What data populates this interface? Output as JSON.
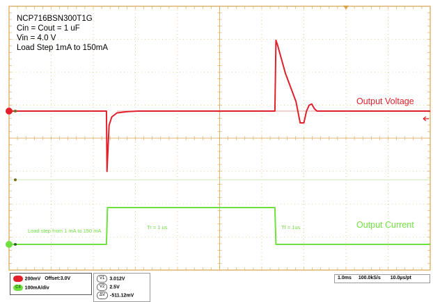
{
  "scope": {
    "info_lines": [
      "NCP716BSN300T1G",
      "Cin = Cout = 1 uF",
      "Vin = 4.0 V",
      "Load Step 1mA to 150mA"
    ],
    "colors": {
      "background": "#ffffff",
      "frame": "#d9a34a",
      "grid": "#d9a34a",
      "voltage": "#e0202a",
      "current": "#6fe040",
      "text": "#000000"
    }
  },
  "chart_data": {
    "type": "line",
    "title": "",
    "xlabel": "",
    "ylabel": "",
    "grid": true,
    "x_unit": "ms",
    "xlim": [
      -1.85,
      6.15
    ],
    "series": [
      {
        "name": "Output Voltage",
        "color": "#e0202a",
        "points": [
          [
            -1.85,
            0.0
          ],
          [
            0.0,
            0.0
          ],
          [
            0.01,
            -0.511
          ],
          [
            0.05,
            -0.12
          ],
          [
            0.1,
            -0.05
          ],
          [
            0.2,
            -0.015
          ],
          [
            0.4,
            -0.004
          ],
          [
            0.6,
            0.0
          ],
          [
            3.2,
            0.0
          ],
          [
            3.22,
            0.6
          ],
          [
            3.25,
            0.56
          ],
          [
            3.4,
            0.32
          ],
          [
            3.5,
            0.2
          ],
          [
            3.6,
            0.08
          ],
          [
            3.68,
            -0.1
          ],
          [
            3.75,
            -0.1
          ],
          [
            3.8,
            0.0
          ],
          [
            3.85,
            0.05
          ],
          [
            3.9,
            0.06
          ],
          [
            3.95,
            0.02
          ],
          [
            4.0,
            0.0
          ],
          [
            6.15,
            0.0
          ]
        ]
      },
      {
        "name": "Output Current",
        "color": "#6fe040",
        "points": [
          [
            -1.85,
            1
          ],
          [
            0.0,
            1
          ],
          [
            0.02,
            150
          ],
          [
            3.2,
            150
          ],
          [
            3.22,
            1
          ],
          [
            6.15,
            1
          ]
        ]
      }
    ],
    "annotations": [
      "Load step from 1 mA to 150 mA",
      "Tr = 1 us",
      "Tf = 1us"
    ]
  },
  "status_bar": {
    "ch1": {
      "badge": "C1",
      "scale": "200mV",
      "offset": "Offset:3.0V",
      "color": "#e0202a"
    },
    "ch4": {
      "badge": "C4",
      "scale": "100mA/div",
      "color": "#6fe040"
    },
    "cursors": [
      {
        "label": "V1",
        "value": "3.012V"
      },
      {
        "label": "V2",
        "value": "2.5V"
      },
      {
        "label": "ΔV",
        "value": "-511.12mV"
      }
    ],
    "timebase": "1.0ms",
    "sample_rate": "100.0kS/s",
    "resolution": "10.0µs/pt"
  }
}
